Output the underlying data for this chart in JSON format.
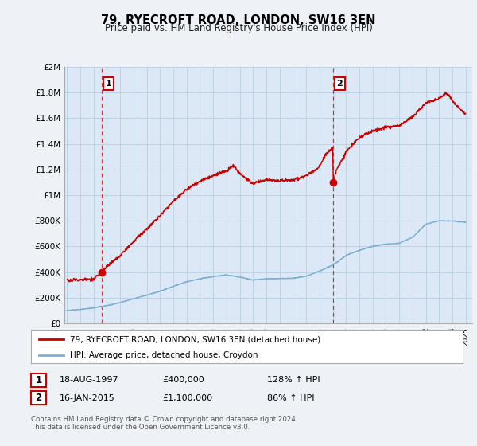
{
  "title": "79, RYECROFT ROAD, LONDON, SW16 3EN",
  "subtitle": "Price paid vs. HM Land Registry's House Price Index (HPI)",
  "ylim": [
    0,
    2000000
  ],
  "yticks": [
    0,
    200000,
    400000,
    600000,
    800000,
    1000000,
    1200000,
    1400000,
    1600000,
    1800000,
    2000000
  ],
  "ytick_labels": [
    "£0",
    "£200K",
    "£400K",
    "£600K",
    "£800K",
    "£1M",
    "£1.2M",
    "£1.4M",
    "£1.6M",
    "£1.8M",
    "£2M"
  ],
  "xlim_start": 1994.8,
  "xlim_end": 2025.5,
  "line1_color": "#cc0000",
  "line2_color": "#7aafd4",
  "point1_x": 1997.62,
  "point1_y": 400000,
  "point1_label": "1",
  "point2_x": 2015.04,
  "point2_y": 1100000,
  "point2_label": "2",
  "vline1_x": 1997.62,
  "vline2_x": 2015.04,
  "legend_line1": "79, RYECROFT ROAD, LONDON, SW16 3EN (detached house)",
  "legend_line2": "HPI: Average price, detached house, Croydon",
  "table_row1": [
    "1",
    "18-AUG-1997",
    "£400,000",
    "128% ↑ HPI"
  ],
  "table_row2": [
    "2",
    "16-JAN-2015",
    "£1,100,000",
    "86% ↑ HPI"
  ],
  "footer": "Contains HM Land Registry data © Crown copyright and database right 2024.\nThis data is licensed under the Open Government Licence v3.0.",
  "background_color": "#eef2f7",
  "plot_bg_color": "#dce8f5",
  "grid_color": "#b8cfe0"
}
